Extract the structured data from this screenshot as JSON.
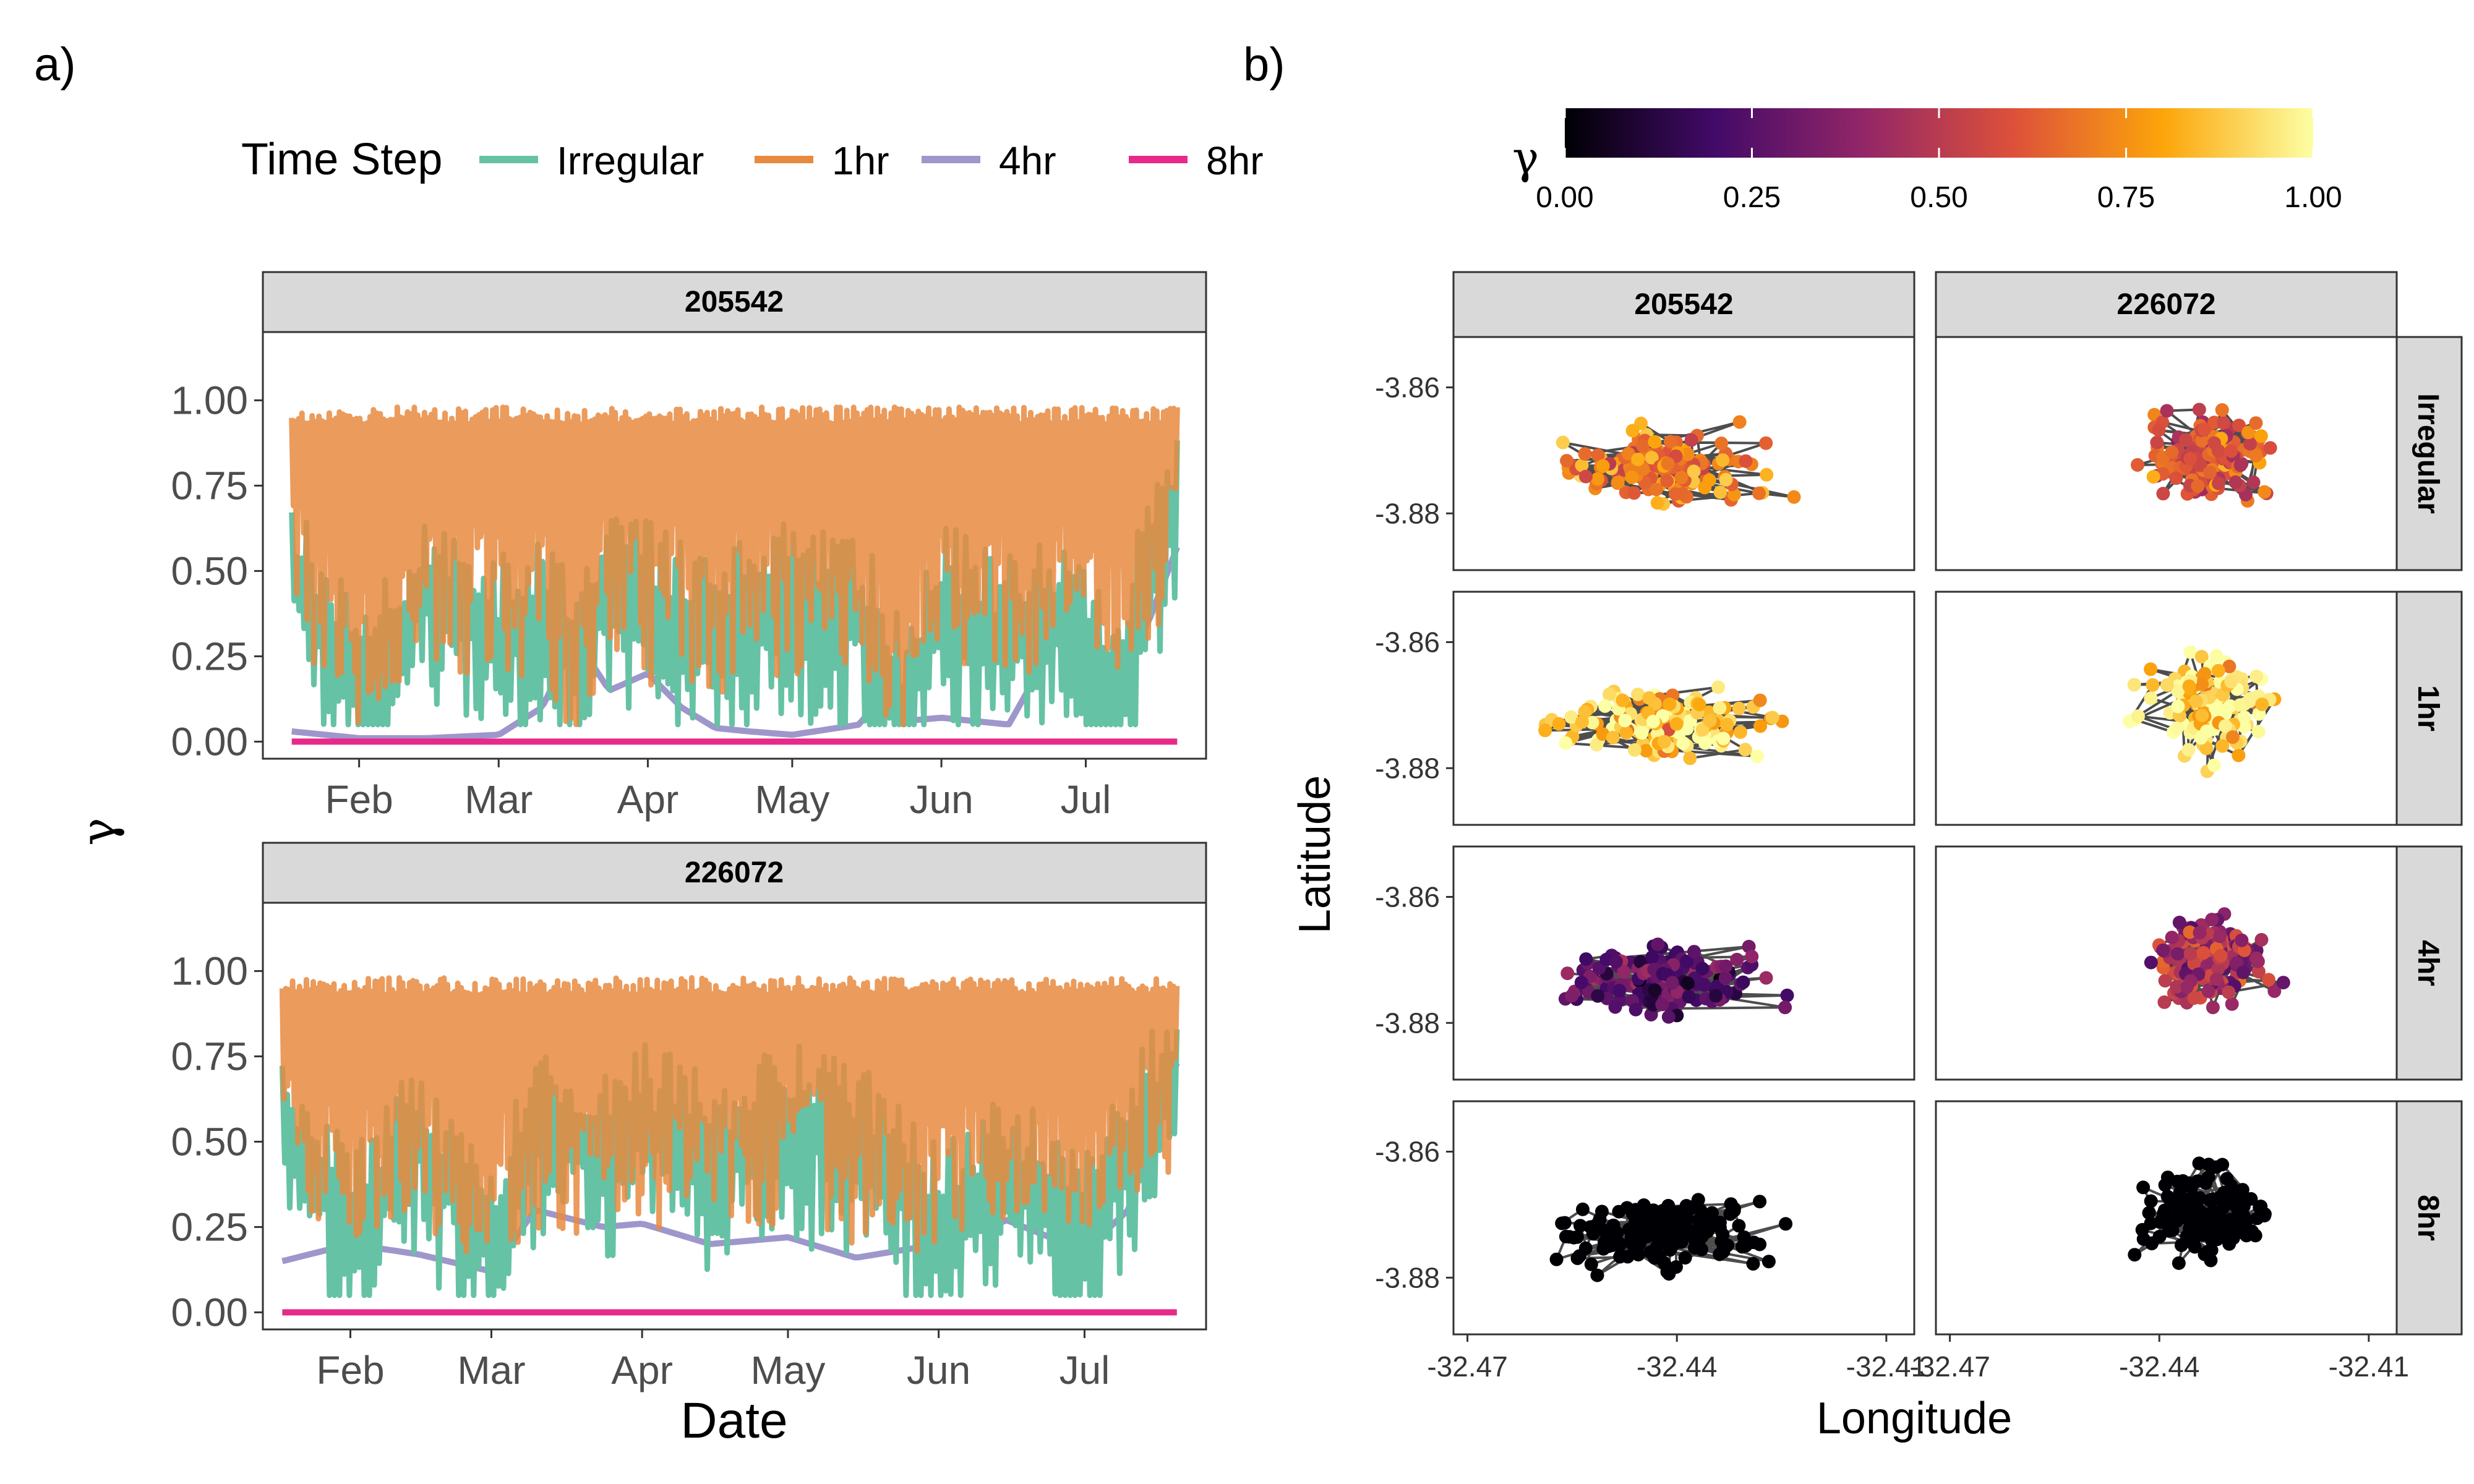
{
  "figure": {
    "label_a": "a)",
    "label_b": "b)"
  },
  "panel_a": {
    "legend": {
      "title": "Time Step",
      "items": [
        {
          "label": "Irregular",
          "color": "#66C2A5"
        },
        {
          "label": "1hr",
          "color": "#E78A3F"
        },
        {
          "label": "4hr",
          "color": "#9D97CB"
        },
        {
          "label": "8hr",
          "color": "#E7298A"
        }
      ]
    },
    "xlabel": "Date",
    "ylabel": "γ"
  },
  "panel_b": {
    "colorbar": {
      "title": "γ",
      "ticks": [
        "0.00",
        "0.25",
        "0.50",
        "0.75",
        "1.00"
      ],
      "palette": "inferno",
      "colors": [
        "#000004",
        "#420A68",
        "#932667",
        "#DD513A",
        "#FCA50A",
        "#FCFFA4"
      ]
    },
    "columns": [
      "205542",
      "226072"
    ],
    "rows": [
      "Irregular",
      "1hr",
      "4hr",
      "8hr"
    ],
    "xlabel": "Longitude",
    "ylabel": "Latitude",
    "x_ticks": [
      "-32.47",
      "-32.44",
      "-32.41"
    ],
    "y_ticks": [
      "-3.86",
      "-3.88"
    ]
  },
  "chart_data": [
    {
      "type": "line",
      "panel": "a",
      "facet": "205542",
      "xlabel": "Date",
      "ylabel": "γ",
      "x_ticks": [
        "Feb",
        "Mar",
        "Apr",
        "May",
        "Jun",
        "Jul"
      ],
      "y_ticks": [
        "0.00",
        "0.25",
        "0.50",
        "0.75",
        "1.00"
      ],
      "ylim": [
        -0.05,
        1.2
      ],
      "x": [
        "2020-01-18",
        "2020-02-01",
        "2020-02-15",
        "2020-03-01",
        "2020-03-10",
        "2020-03-17",
        "2020-03-24",
        "2020-04-01",
        "2020-04-08",
        "2020-04-15",
        "2020-04-22",
        "2020-05-01",
        "2020-05-15",
        "2020-05-20",
        "2020-05-24",
        "2020-06-01",
        "2020-06-15",
        "2020-06-25",
        "2020-07-01",
        "2020-07-08",
        "2020-07-14",
        "2020-07-20"
      ],
      "series": [
        {
          "name": "Irregular",
          "values": [
            0.55,
            0.2,
            0.5,
            0.35,
            0.4,
            0.3,
            0.5,
            0.45,
            0.4,
            0.35,
            0.4,
            0.45,
            0.4,
            0.3,
            0.15,
            0.45,
            0.35,
            0.4,
            0.3,
            0.15,
            0.6,
            0.73
          ]
        },
        {
          "name": "1hr",
          "values": [
            0.85,
            0.6,
            0.8,
            0.7,
            0.75,
            0.55,
            0.8,
            0.7,
            0.75,
            0.65,
            0.8,
            0.7,
            0.75,
            0.6,
            0.5,
            0.8,
            0.7,
            0.75,
            0.7,
            0.65,
            0.85,
            0.97
          ]
        },
        {
          "name": "4hr",
          "values": [
            0.03,
            0.01,
            0.01,
            0.02,
            0.1,
            0.3,
            0.15,
            0.2,
            0.1,
            0.04,
            0.03,
            0.02,
            0.05,
            0.15,
            0.06,
            0.07,
            0.05,
            0.3,
            0.12,
            0.2,
            0.35,
            0.57
          ]
        },
        {
          "name": "8hr",
          "values": [
            0,
            0,
            0,
            0,
            0,
            0,
            0,
            0,
            0,
            0,
            0,
            0,
            0,
            0,
            0,
            0,
            0,
            0,
            0,
            0,
            0,
            0
          ]
        }
      ]
    },
    {
      "type": "line",
      "panel": "a",
      "facet": "226072",
      "xlabel": "Date",
      "ylabel": "γ",
      "x_ticks": [
        "Feb",
        "Mar",
        "Apr",
        "May",
        "Jun",
        "Jul"
      ],
      "y_ticks": [
        "0.00",
        "0.25",
        "0.50",
        "0.75",
        "1.00"
      ],
      "ylim": [
        -0.05,
        1.2
      ],
      "x": [
        "2020-01-18",
        "2020-02-01",
        "2020-02-15",
        "2020-03-01",
        "2020-03-10",
        "2020-03-24",
        "2020-04-01",
        "2020-04-15",
        "2020-05-01",
        "2020-05-15",
        "2020-06-01",
        "2020-06-15",
        "2020-07-01",
        "2020-07-10",
        "2020-07-20"
      ],
      "series": [
        {
          "name": "Irregular",
          "values": [
            0.6,
            0.3,
            0.55,
            0.25,
            0.6,
            0.55,
            0.6,
            0.5,
            0.6,
            0.55,
            0.3,
            0.45,
            0.3,
            0.55,
            0.75
          ]
        },
        {
          "name": "1hr",
          "values": [
            0.82,
            0.7,
            0.8,
            0.65,
            0.8,
            0.75,
            0.8,
            0.75,
            0.8,
            0.75,
            0.7,
            0.8,
            0.75,
            0.85,
            0.97
          ]
        },
        {
          "name": "4hr",
          "values": [
            0.15,
            0.2,
            0.17,
            0.12,
            0.3,
            0.25,
            0.26,
            0.2,
            0.22,
            0.16,
            0.2,
            0.27,
            0.18,
            0.3,
            0.73
          ]
        },
        {
          "name": "8hr",
          "values": [
            0,
            0,
            0,
            0,
            0,
            0,
            0,
            0,
            0,
            0,
            0,
            0,
            0,
            0,
            0
          ]
        }
      ]
    },
    {
      "type": "scatter",
      "panel": "b",
      "facet_columns": [
        "205542",
        "226072"
      ],
      "facet_rows": [
        "Irregular",
        "1hr",
        "4hr",
        "8hr"
      ],
      "xlabel": "Longitude",
      "ylabel": "Latitude",
      "xlim": [
        -32.472,
        -32.406
      ],
      "ylim": [
        -3.889,
        -3.852
      ],
      "x_ticks": [
        -32.47,
        -32.44,
        -32.41
      ],
      "y_ticks": [
        -3.86,
        -3.88
      ],
      "color_scale": "inferno",
      "color_range": [
        0,
        1
      ],
      "clusters": {
        "205542": {
          "lon_range": [
            -32.468,
            -32.416
          ],
          "lat_range": [
            -3.884,
            -3.862
          ]
        },
        "226072": {
          "lon_range": [
            -32.448,
            -32.418
          ],
          "lat_range": [
            -3.885,
            -3.856
          ]
        }
      },
      "mean_gamma": {
        "205542": {
          "Irregular": 0.7,
          "1hr": 0.9,
          "4hr": 0.25,
          "8hr": 0.0
        },
        "226072": {
          "Irregular": 0.6,
          "1hr": 0.92,
          "4hr": 0.45,
          "8hr": 0.0
        }
      }
    }
  ]
}
